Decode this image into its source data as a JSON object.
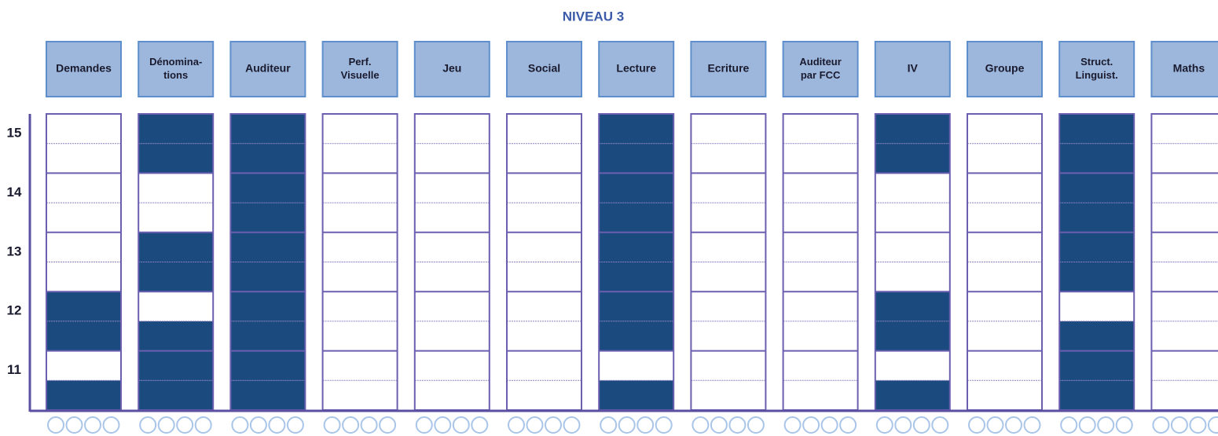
{
  "title": "NIVEAU 3",
  "levels": [
    15,
    14,
    13,
    12,
    11
  ],
  "columns": [
    {
      "label": [
        "Demandes"
      ],
      "filled": [
        false,
        false,
        false,
        false,
        false,
        false,
        true,
        true,
        false,
        true
      ]
    },
    {
      "label": [
        "Dénomina-",
        "tions"
      ],
      "filled": [
        true,
        true,
        false,
        false,
        true,
        true,
        false,
        true,
        true,
        true
      ]
    },
    {
      "label": [
        "Auditeur"
      ],
      "filled": [
        true,
        true,
        true,
        true,
        true,
        true,
        true,
        true,
        true,
        true
      ]
    },
    {
      "label": [
        "Perf.",
        "Visuelle"
      ],
      "filled": [
        false,
        false,
        false,
        false,
        false,
        false,
        false,
        false,
        false,
        false
      ]
    },
    {
      "label": [
        "Jeu"
      ],
      "filled": [
        false,
        false,
        false,
        false,
        false,
        false,
        false,
        false,
        false,
        false
      ]
    },
    {
      "label": [
        "Social"
      ],
      "filled": [
        false,
        false,
        false,
        false,
        false,
        false,
        false,
        false,
        false,
        false
      ]
    },
    {
      "label": [
        "Lecture"
      ],
      "filled": [
        true,
        true,
        true,
        true,
        true,
        true,
        true,
        true,
        false,
        true
      ]
    },
    {
      "label": [
        "Ecriture"
      ],
      "filled": [
        false,
        false,
        false,
        false,
        false,
        false,
        false,
        false,
        false,
        false
      ]
    },
    {
      "label": [
        "Auditeur",
        "par FCC"
      ],
      "filled": [
        false,
        false,
        false,
        false,
        false,
        false,
        false,
        false,
        false,
        false
      ]
    },
    {
      "label": [
        "IV"
      ],
      "filled": [
        true,
        true,
        false,
        false,
        false,
        false,
        true,
        true,
        false,
        true
      ]
    },
    {
      "label": [
        "Groupe"
      ],
      "filled": [
        false,
        false,
        false,
        false,
        false,
        false,
        false,
        false,
        false,
        false
      ]
    },
    {
      "label": [
        "Struct.",
        "Linguist."
      ],
      "filled": [
        true,
        true,
        true,
        true,
        true,
        true,
        false,
        true,
        true,
        true
      ]
    },
    {
      "label": [
        "Maths"
      ],
      "filled": [
        false,
        false,
        false,
        false,
        false,
        false,
        false,
        false,
        false,
        false
      ]
    }
  ]
}
